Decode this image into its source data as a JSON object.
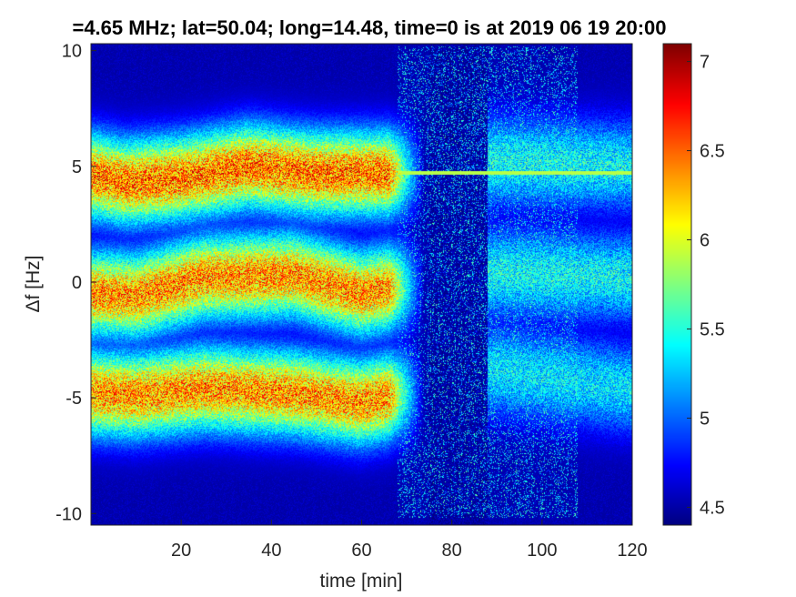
{
  "chart_data": {
    "type": "heatmap",
    "title": "=4.65 MHz;  lat=50.04; long=14.48, time=0 is at 2019 06 19 20:00",
    "xlabel": "time [min]",
    "ylabel": "Δf [Hz]",
    "xlim": [
      0,
      120
    ],
    "ylim": [
      -10.5,
      10.3
    ],
    "xticks": [
      20,
      40,
      60,
      80,
      100,
      120
    ],
    "yticks": [
      10,
      5,
      0,
      -5,
      -10
    ],
    "colorbar": {
      "colormap": "jet",
      "clim": [
        4.4,
        7.1
      ],
      "ticks": [
        7,
        6.5,
        6,
        5.5,
        5,
        4.5
      ]
    },
    "bands": [
      {
        "center": [
          [
            0,
            4.6
          ],
          [
            8,
            4.3
          ],
          [
            20,
            4.5
          ],
          [
            35,
            5.0
          ],
          [
            50,
            4.7
          ],
          [
            68,
            4.7
          ]
        ],
        "peak": 7.0
      },
      {
        "center": [
          [
            0,
            -0.5
          ],
          [
            10,
            -0.6
          ],
          [
            25,
            0.2
          ],
          [
            45,
            0.3
          ],
          [
            60,
            -0.5
          ],
          [
            68,
            -0.2
          ]
        ],
        "peak": 6.9
      },
      {
        "center": [
          [
            0,
            -4.8
          ],
          [
            10,
            -4.9
          ],
          [
            25,
            -4.6
          ],
          [
            45,
            -4.8
          ],
          [
            60,
            -5.2
          ],
          [
            70,
            -4.8
          ]
        ],
        "peak": 6.9
      }
    ],
    "faint_bands": [
      {
        "center": [
          [
            92,
            5.2
          ],
          [
            120,
            5.0
          ]
        ],
        "peak": 5.8
      },
      {
        "center": [
          [
            90,
            0.4
          ],
          [
            120,
            0.2
          ]
        ],
        "peak": 5.8
      },
      {
        "center": [
          [
            90,
            -3.8
          ],
          [
            120,
            -4.6
          ]
        ],
        "peak": 5.7
      }
    ],
    "carrier_line": {
      "y": 4.7,
      "x": [
        68,
        120
      ],
      "value": 5.9
    },
    "background_level": 4.5
  }
}
